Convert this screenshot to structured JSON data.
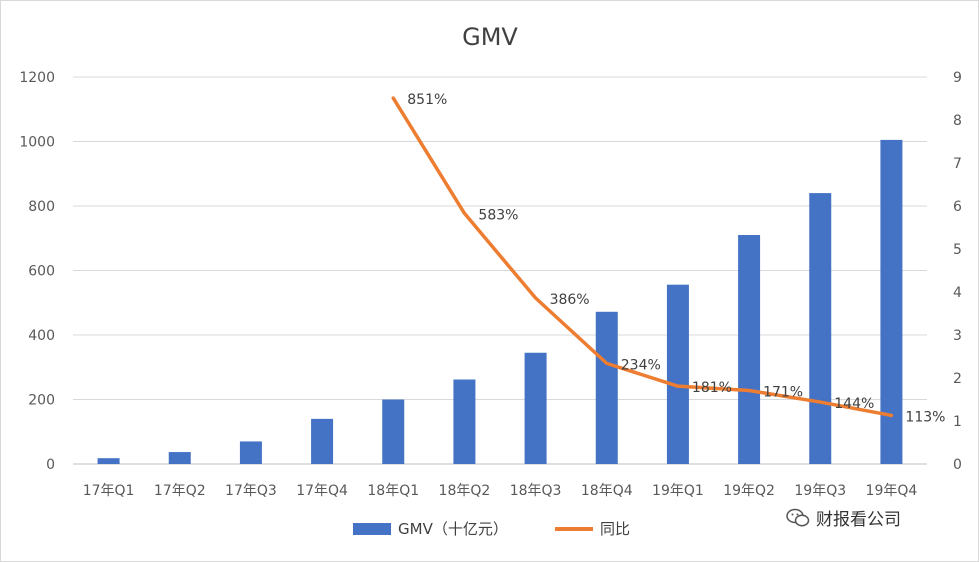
{
  "chart_data": {
    "type": "bar",
    "title": "GMV",
    "categories": [
      "17年Q1",
      "17年Q2",
      "17年Q3",
      "17年Q4",
      "18年Q1",
      "18年Q2",
      "18年Q3",
      "18年Q4",
      "19年Q1",
      "19年Q2",
      "19年Q3",
      "19年Q4"
    ],
    "series": [
      {
        "name": "GMV（十亿元）",
        "type": "bar",
        "axis": "left",
        "color": "#4472C4",
        "values": [
          18,
          37,
          70,
          140,
          200,
          262,
          345,
          472,
          556,
          710,
          840,
          1005
        ]
      },
      {
        "name": "同比",
        "type": "line",
        "axis": "right",
        "color": "#ED7D31",
        "values": [
          null,
          null,
          null,
          null,
          8.51,
          5.83,
          3.86,
          2.34,
          1.81,
          1.71,
          1.44,
          1.13
        ],
        "data_labels": [
          "",
          "",
          "",
          "",
          "851%",
          "583%",
          "386%",
          "234%",
          "181%",
          "171%",
          "144%",
          "113%"
        ]
      }
    ],
    "y_left": {
      "min": 0,
      "max": 1200,
      "ticks": [
        "0",
        "200",
        "400",
        "600",
        "800",
        "1000",
        "1200"
      ]
    },
    "y_right": {
      "min": 0,
      "max": 9,
      "ticks": [
        "0",
        "1",
        "2",
        "3",
        "4",
        "5",
        "6",
        "7",
        "8",
        "9"
      ]
    },
    "grid": true,
    "legend": "bottom"
  },
  "watermark": {
    "text": "财报看公司",
    "icon": "wechat-icon"
  }
}
